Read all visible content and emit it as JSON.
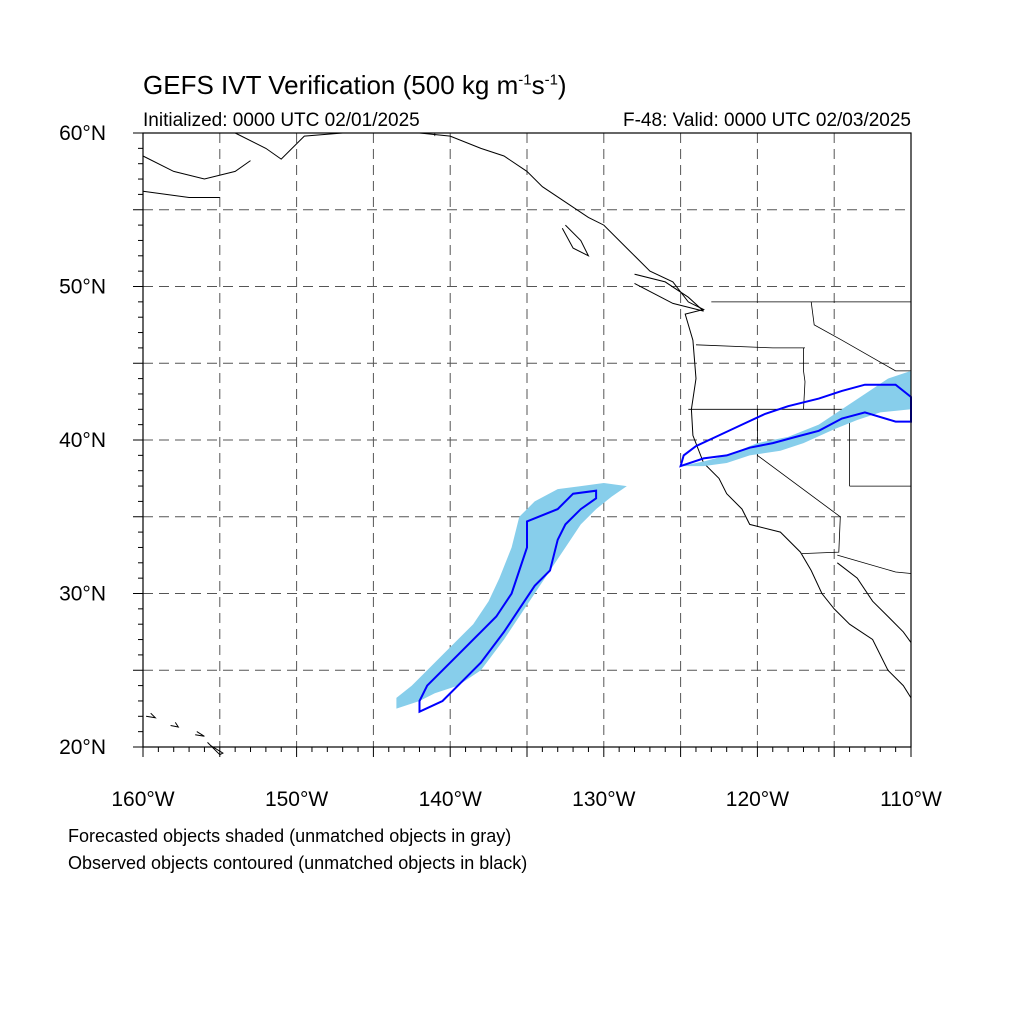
{
  "title": {
    "main": "GEFS IVT Verification (500 kg m",
    "exp1": "-1",
    "mid": "s",
    "exp2": "-1",
    "close": ")"
  },
  "subtitle": {
    "left": "Initialized: 0000 UTC 02/01/2025",
    "right": "F-48: Valid: 0000 UTC 02/03/2025"
  },
  "axes": {
    "lat_labels": [
      "20°N",
      "30°N",
      "40°N",
      "50°N",
      "60°N"
    ],
    "lat_values": [
      20,
      30,
      40,
      50,
      60
    ],
    "lon_labels": [
      "160°W",
      "150°W",
      "140°W",
      "130°W",
      "120°W",
      "110°W"
    ],
    "lon_values": [
      -160,
      -150,
      -140,
      -130,
      -120,
      -110
    ],
    "lat_range": [
      20,
      60
    ],
    "lon_range": [
      -160,
      -110
    ],
    "grid": "dashed, every 5 degrees"
  },
  "legend": {
    "line1": "Forecasted objects shaded (unmatched objects in gray)",
    "line2": "Observed objects contoured (unmatched objects in black)"
  },
  "colors": {
    "forecast_fill": "#87ceeb",
    "observed_contour": "#0000ff",
    "coastline": "#000000",
    "grid": "#555555"
  },
  "objects": {
    "forecast_offshore_polygon": [
      [
        -143.5,
        22.5
      ],
      [
        -142.0,
        23.0
      ],
      [
        -141.0,
        23.5
      ],
      [
        -139.5,
        24.0
      ],
      [
        -138.0,
        25.0
      ],
      [
        -136.5,
        27.0
      ],
      [
        -135.5,
        28.5
      ],
      [
        -134.5,
        30.0
      ],
      [
        -133.5,
        31.5
      ],
      [
        -132.5,
        33.0
      ],
      [
        -131.5,
        34.5
      ],
      [
        -130.5,
        35.5
      ],
      [
        -129.5,
        36.3
      ],
      [
        -128.5,
        37.0
      ],
      [
        -130.0,
        37.2
      ],
      [
        -131.5,
        37.0
      ],
      [
        -133.0,
        36.8
      ],
      [
        -134.5,
        36.0
      ],
      [
        -135.5,
        35.0
      ],
      [
        -136.0,
        33.0
      ],
      [
        -136.8,
        31.0
      ],
      [
        -137.5,
        29.5
      ],
      [
        -138.5,
        28.0
      ],
      [
        -139.5,
        27.0
      ],
      [
        -140.5,
        26.0
      ],
      [
        -141.5,
        25.0
      ],
      [
        -142.5,
        24.0
      ],
      [
        -143.5,
        23.2
      ]
    ],
    "observed_offshore_contour": [
      [
        -142.0,
        22.3
      ],
      [
        -140.5,
        23.0
      ],
      [
        -139.0,
        24.5
      ],
      [
        -138.0,
        25.5
      ],
      [
        -136.5,
        27.5
      ],
      [
        -135.5,
        29.0
      ],
      [
        -134.5,
        30.5
      ],
      [
        -133.5,
        31.5
      ],
      [
        -133.0,
        33.5
      ],
      [
        -132.5,
        34.5
      ],
      [
        -131.5,
        35.5
      ],
      [
        -130.5,
        36.2
      ],
      [
        -130.5,
        36.7
      ],
      [
        -132.0,
        36.5
      ],
      [
        -133.0,
        35.5
      ],
      [
        -135.0,
        34.7
      ],
      [
        -135.0,
        33.0
      ],
      [
        -135.5,
        31.5
      ],
      [
        -136.0,
        30.0
      ],
      [
        -137.0,
        28.5
      ],
      [
        -138.0,
        27.5
      ],
      [
        -139.5,
        26.0
      ],
      [
        -140.5,
        25.0
      ],
      [
        -141.5,
        24.0
      ],
      [
        -142.0,
        23.0
      ]
    ],
    "forecast_land_polygon": [
      [
        -125.0,
        38.3
      ],
      [
        -123.5,
        38.6
      ],
      [
        -122.0,
        39.0
      ],
      [
        -120.0,
        39.8
      ],
      [
        -118.0,
        40.2
      ],
      [
        -116.0,
        41.0
      ],
      [
        -114.5,
        42.0
      ],
      [
        -113.0,
        43.0
      ],
      [
        -111.5,
        44.0
      ],
      [
        -110.0,
        44.5
      ],
      [
        -110.0,
        42.0
      ],
      [
        -112.0,
        41.8
      ],
      [
        -113.5,
        41.3
      ],
      [
        -115.0,
        40.7
      ],
      [
        -117.0,
        39.8
      ],
      [
        -118.5,
        39.3
      ],
      [
        -120.5,
        39.0
      ],
      [
        -122.0,
        38.5
      ],
      [
        -123.5,
        38.3
      ]
    ],
    "observed_land_contour": [
      [
        -125.0,
        38.3
      ],
      [
        -124.8,
        39.0
      ],
      [
        -124.0,
        39.6
      ],
      [
        -122.5,
        40.3
      ],
      [
        -121.0,
        41.0
      ],
      [
        -119.5,
        41.7
      ],
      [
        -118.0,
        42.2
      ],
      [
        -116.0,
        42.7
      ],
      [
        -114.5,
        43.2
      ],
      [
        -113.0,
        43.6
      ],
      [
        -111.0,
        43.6
      ],
      [
        -110.0,
        42.8
      ],
      [
        -110.0,
        41.2
      ],
      [
        -111.0,
        41.2
      ],
      [
        -113.0,
        41.8
      ],
      [
        -114.5,
        41.4
      ],
      [
        -116.0,
        40.6
      ],
      [
        -117.5,
        40.2
      ],
      [
        -119.0,
        39.8
      ],
      [
        -120.5,
        39.5
      ],
      [
        -122.0,
        39.0
      ],
      [
        -123.5,
        38.8
      ]
    ]
  }
}
